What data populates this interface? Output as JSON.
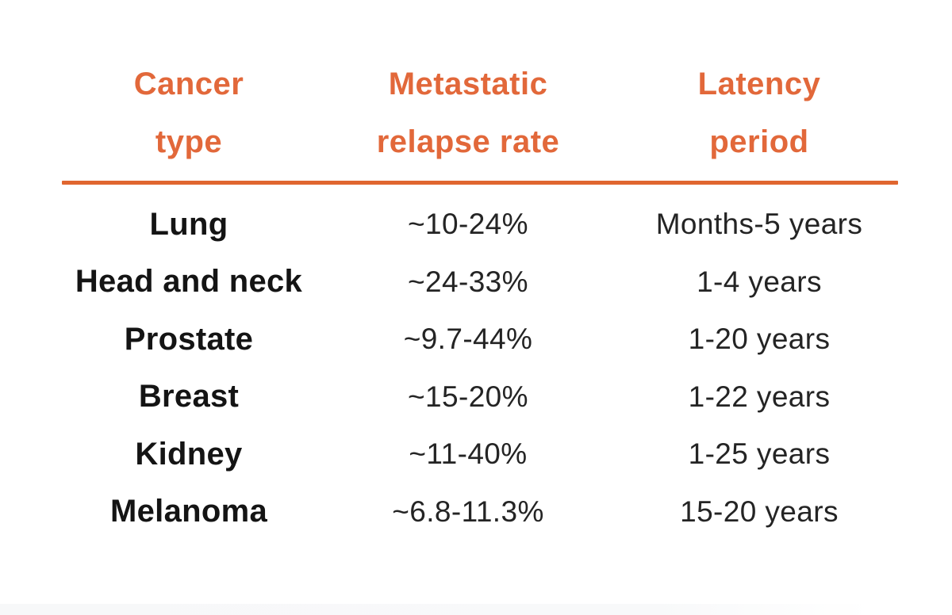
{
  "accent_color": "#e2683a",
  "rule_color": "#e0662f",
  "columns": [
    {
      "line1": "Cancer",
      "line2": "type"
    },
    {
      "line1": "Metastatic",
      "line2": "relapse rate"
    },
    {
      "line1": "Latency",
      "line2": "period"
    }
  ],
  "rows": [
    {
      "type": "Lung",
      "rate": "~10-24%",
      "latency": "Months-5 years"
    },
    {
      "type": "Head and neck",
      "rate": "~24-33%",
      "latency": "1-4 years"
    },
    {
      "type": "Prostate",
      "rate": "~9.7-44%",
      "latency": "1-20 years"
    },
    {
      "type": "Breast",
      "rate": "~15-20%",
      "latency": "1-22 years"
    },
    {
      "type": "Kidney",
      "rate": "~11-40%",
      "latency": "1-25 years"
    },
    {
      "type": "Melanoma",
      "rate": "~6.8-11.3%",
      "latency": "15-20 years"
    }
  ],
  "chart_data": {
    "type": "table",
    "columns": [
      "Cancer type",
      "Metastatic relapse rate",
      "Latency period"
    ],
    "rows": [
      [
        "Lung",
        "~10-24%",
        "Months-5 years"
      ],
      [
        "Head and neck",
        "~24-33%",
        "1-4 years"
      ],
      [
        "Prostate",
        "~9.7-44%",
        "1-20 years"
      ],
      [
        "Breast",
        "~15-20%",
        "1-22 years"
      ],
      [
        "Kidney",
        "~11-40%",
        "1-25 years"
      ],
      [
        "Melanoma",
        "~6.8-11.3%",
        "15-20 years"
      ]
    ]
  }
}
